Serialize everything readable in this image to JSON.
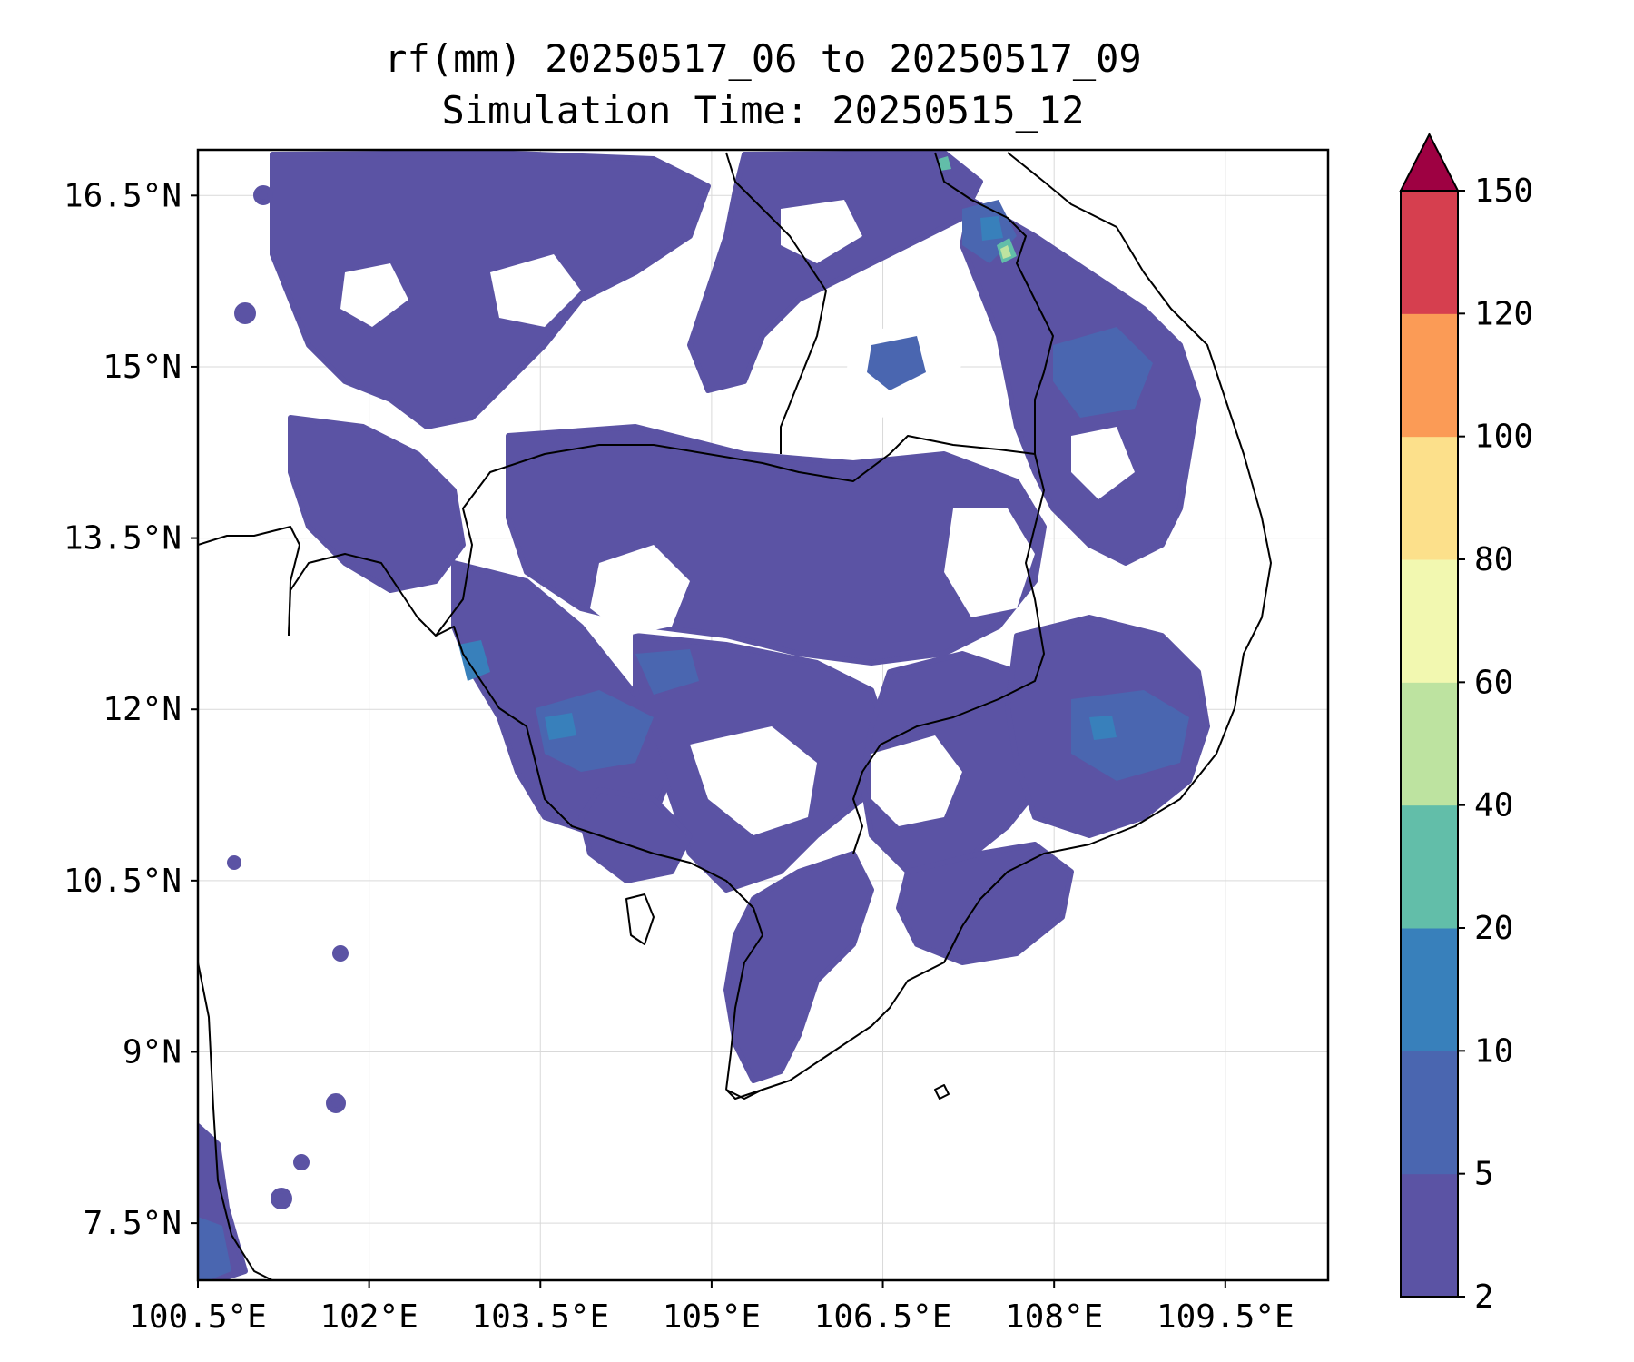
{
  "title": {
    "line1": "rf(mm) 20250517_06 to 20250517_09",
    "line2": "Simulation Time: 20250515_12"
  },
  "map": {
    "lon_range": [
      100.5,
      110.4
    ],
    "lat_range": [
      7.0,
      16.9
    ],
    "x_ticks": [
      {
        "value": 100.5,
        "label": "100.5°E"
      },
      {
        "value": 102.0,
        "label": "102°E"
      },
      {
        "value": 103.5,
        "label": "103.5°E"
      },
      {
        "value": 105.0,
        "label": "105°E"
      },
      {
        "value": 106.5,
        "label": "106.5°E"
      },
      {
        "value": 108.0,
        "label": "108°E"
      },
      {
        "value": 109.5,
        "label": "109.5°E"
      }
    ],
    "y_ticks": [
      {
        "value": 16.5,
        "label": "16.5°N"
      },
      {
        "value": 15.0,
        "label": "15°N"
      },
      {
        "value": 13.5,
        "label": "13.5°N"
      },
      {
        "value": 12.0,
        "label": "12°N"
      },
      {
        "value": 10.5,
        "label": "10.5°N"
      },
      {
        "value": 9.0,
        "label": "9°N"
      },
      {
        "value": 7.5,
        "label": "7.5°N"
      }
    ],
    "grid": true
  },
  "colorbar": {
    "levels": [
      2,
      5,
      10,
      20,
      40,
      60,
      80,
      100,
      120,
      150
    ],
    "labels": [
      "2",
      "5",
      "10",
      "20",
      "40",
      "60",
      "80",
      "100",
      "120",
      "150"
    ],
    "colors": [
      "#5b53a4",
      "#4a66b0",
      "#3880bb",
      "#62bea9",
      "#bde3a0",
      "#f2f8b0",
      "#fce08b",
      "#fb9b56",
      "#d63f4f"
    ],
    "extend_color": "#9e0142",
    "extend": "max"
  }
}
